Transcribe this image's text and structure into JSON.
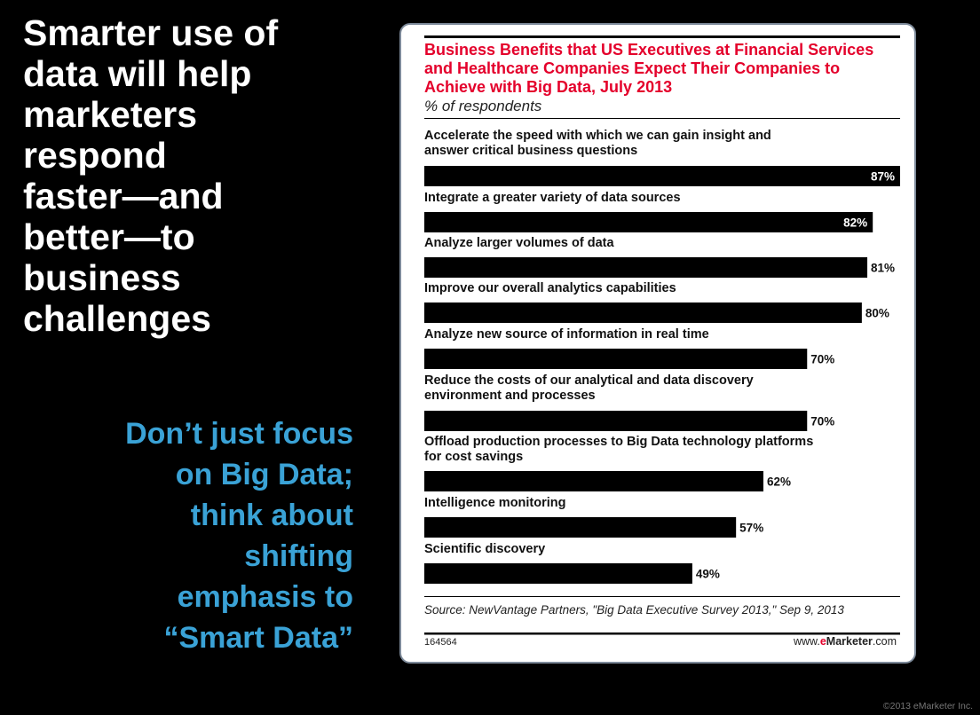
{
  "slide": {
    "headline_lines": [
      "Smarter use of",
      "data will help",
      "marketers",
      "respond",
      "faster—and",
      "better—to",
      "business",
      "challenges"
    ],
    "subhead_lines": [
      "Don’t just focus",
      "on Big Data;",
      "think about",
      "shifting",
      "emphasis to",
      "“Smart Data”"
    ],
    "copyright": "©2013 eMarketer Inc."
  },
  "chart_data": {
    "type": "bar",
    "orientation": "horizontal",
    "title": "Business Benefits that US Executives at Financial Services and Healthcare Companies Expect Their Companies to Achieve with Big Data, July 2013",
    "subtitle": "% of respondents",
    "categories": [
      [
        "Accelerate the speed with which we can gain insight and",
        "answer critical business questions"
      ],
      [
        "Integrate a greater variety of data sources"
      ],
      [
        "Analyze larger volumes of data"
      ],
      [
        "Improve our overall analytics capabilities"
      ],
      [
        "Analyze new source of information in real time"
      ],
      [
        "Reduce the costs of our analytical and data discovery",
        "environment and processes"
      ],
      [
        "Offload production processes to Big Data technology platforms",
        "for cost savings"
      ],
      [
        "Intelligence monitoring"
      ],
      [
        "Scientific discovery"
      ]
    ],
    "values": [
      87,
      82,
      81,
      80,
      70,
      70,
      62,
      57,
      49
    ],
    "value_labels": [
      "87%",
      "82%",
      "81%",
      "80%",
      "70%",
      "70%",
      "62%",
      "57%",
      "49%"
    ],
    "xlim": [
      0,
      87
    ],
    "bar_color": "#000000",
    "source": "Source: NewVantage Partners, \"Big Data Executive Survey 2013,\" Sep 9, 2013",
    "chart_id": "164564",
    "brand": {
      "prefix": "www.",
      "e": "e",
      "name": "Marketer",
      "suffix": ".com"
    }
  }
}
